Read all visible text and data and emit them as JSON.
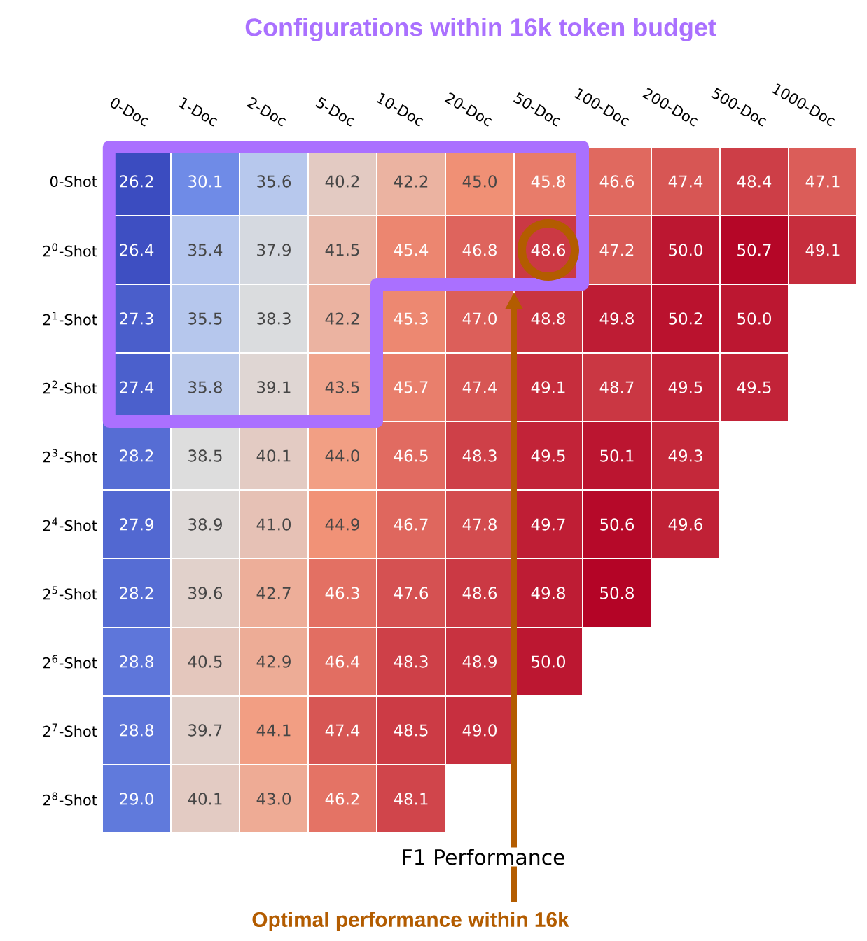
{
  "chart_data": {
    "type": "heatmap",
    "title": "Configurations within 16k token budget",
    "xlabel": "F1 Performance",
    "categories": [
      "0-Doc",
      "1-Doc",
      "2-Doc",
      "5-Doc",
      "10-Doc",
      "20-Doc",
      "50-Doc",
      "100-Doc",
      "200-Doc",
      "500-Doc",
      "1000-Doc"
    ],
    "y_categories": [
      "0-Shot",
      "2$^{0}$-Shot",
      "2$^{1}$-Shot",
      "2$^{2}$-Shot",
      "2$^{3}$-Shot",
      "2$^{4}$-Shot",
      "2$^{5}$-Shot",
      "2$^{6}$-Shot",
      "2$^{7}$-Shot",
      "2$^{8}$-Shot"
    ],
    "cells": [
      [
        26.2,
        30.1,
        35.6,
        40.2,
        42.2,
        45.0,
        45.8,
        46.6,
        47.4,
        48.4,
        47.1
      ],
      [
        26.4,
        35.4,
        37.9,
        41.5,
        45.4,
        46.8,
        48.6,
        47.2,
        50.0,
        50.7,
        49.1
      ],
      [
        27.3,
        35.5,
        38.3,
        42.2,
        45.3,
        47.0,
        48.8,
        49.8,
        50.2,
        50.0,
        null
      ],
      [
        27.4,
        35.8,
        39.1,
        43.5,
        45.7,
        47.4,
        49.1,
        48.7,
        49.5,
        49.5,
        null
      ],
      [
        28.2,
        38.5,
        40.1,
        44.0,
        46.5,
        48.3,
        49.5,
        50.1,
        49.3,
        null,
        null
      ],
      [
        27.9,
        38.9,
        41.0,
        44.9,
        46.7,
        47.8,
        49.7,
        50.6,
        49.6,
        null,
        null
      ],
      [
        28.2,
        39.6,
        42.7,
        46.3,
        47.6,
        48.6,
        49.8,
        50.8,
        null,
        null,
        null
      ],
      [
        28.8,
        40.5,
        42.9,
        46.4,
        48.3,
        48.9,
        50.0,
        null,
        null,
        null,
        null
      ],
      [
        28.8,
        39.7,
        44.1,
        47.4,
        48.5,
        49.0,
        null,
        null,
        null,
        null,
        null
      ],
      [
        29.0,
        40.1,
        43.0,
        46.2,
        48.1,
        null,
        null,
        null,
        null,
        null,
        null
      ]
    ],
    "cell_labels": [
      [
        "26.2",
        "30.1",
        "35.6",
        "40.2",
        "42.2",
        "45.0",
        "45.8",
        "46.6",
        "47.4",
        "48.4",
        "47.1"
      ],
      [
        "26.4",
        "35.4",
        "37.9",
        "41.5",
        "45.4",
        "46.8",
        "48.6",
        "47.2",
        "50.0",
        "50.7",
        "49.1"
      ],
      [
        "27.3",
        "35.5",
        "38.3",
        "42.2",
        "45.3",
        "47.0",
        "48.8",
        "49.8",
        "50.2",
        "50.0",
        null
      ],
      [
        "27.4",
        "35.8",
        "39.1",
        "43.5",
        "45.7",
        "47.4",
        "49.1",
        "48.7",
        "49.5",
        "49.5",
        null
      ],
      [
        "28.2",
        "38.5",
        "40.1",
        "44.0",
        "46.5",
        "48.3",
        "49.5",
        "50.1",
        "49.3",
        null,
        null
      ],
      [
        "27.9",
        "38.9",
        "41.0",
        "44.9",
        "46.7",
        "47.8",
        "49.7",
        "50.6",
        "49.6",
        null,
        null
      ],
      [
        "28.2",
        "39.6",
        "42.7",
        "46.3",
        "47.6",
        "48.6",
        "49.8",
        "50.8",
        null,
        null,
        null
      ],
      [
        "28.8",
        "40.5",
        "42.9",
        "46.4",
        "48.3",
        "48.9",
        "50.0",
        null,
        null,
        null,
        null
      ],
      [
        "28.8",
        "39.7",
        "44.1",
        "47.4",
        "48.5",
        "49.0",
        null,
        null,
        null,
        null,
        null
      ],
      [
        "29.0",
        "40.1",
        "43.0",
        "46.2",
        "48.1",
        null,
        null,
        null,
        null,
        null,
        null
      ]
    ],
    "data_labels": true,
    "annotations": [
      "Optimal performance within 16k"
    ]
  }
}
